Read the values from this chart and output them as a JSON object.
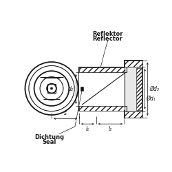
{
  "bg_color": "#ffffff",
  "line_color": "#1a1a1a",
  "gray_fill": "#cccccc",
  "centerline_color": "#6699cc",
  "dim_color": "#1a1a1a",
  "texts": {
    "reflektor": "Reflektor",
    "reflector": "Reflector",
    "dichtung": "Dichtung",
    "seal": "Seal"
  },
  "labels": {
    "d2": "d₂",
    "d1": "Ød₁",
    "d3": "Ød₃",
    "s": "s",
    "l1": "l₁",
    "l2": "l₂"
  }
}
